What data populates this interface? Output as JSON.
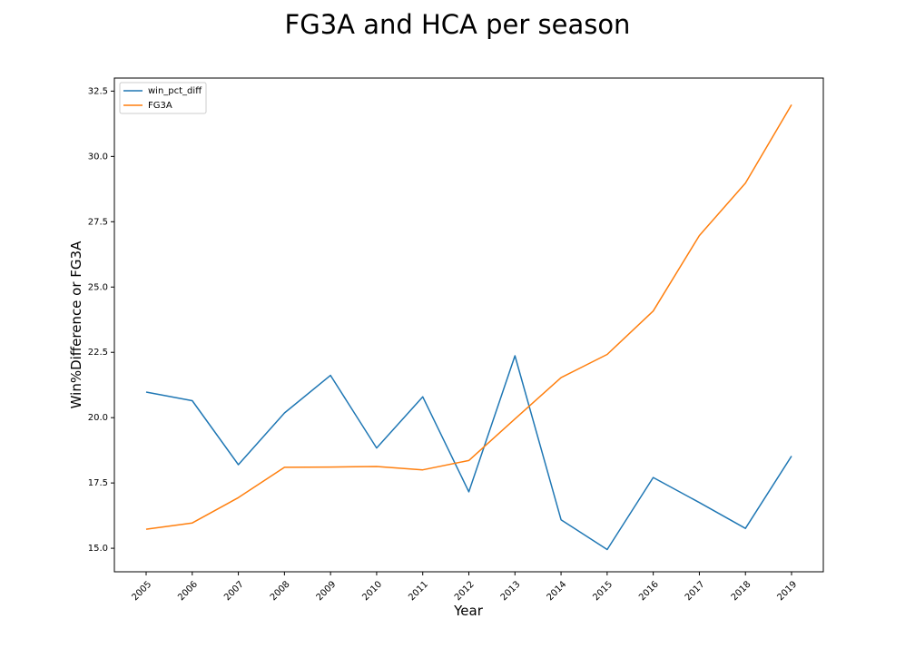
{
  "chart_data": {
    "type": "line",
    "title": "FG3A and HCA per season",
    "xlabel": "Year",
    "ylabel": "Win%Difference or FG3A",
    "x": [
      "2005",
      "2006",
      "2007",
      "2008",
      "2009",
      "2010",
      "2011",
      "2012",
      "2013",
      "2014",
      "2015",
      "2016",
      "2017",
      "2018",
      "2019"
    ],
    "series": [
      {
        "name": "win_pct_diff",
        "color": "#1f77b4",
        "values": [
          20.98,
          20.65,
          18.2,
          20.18,
          21.62,
          18.84,
          20.8,
          17.16,
          22.37,
          16.09,
          14.95,
          17.71,
          16.75,
          15.76,
          18.53
        ]
      },
      {
        "name": "FG3A",
        "color": "#ff7f0e",
        "values": [
          15.73,
          15.97,
          16.94,
          18.1,
          18.11,
          18.13,
          18.0,
          18.36,
          19.95,
          21.53,
          22.42,
          24.08,
          26.97,
          28.98,
          31.98
        ]
      }
    ],
    "yticks": [
      "15.0",
      "17.5",
      "20.0",
      "22.5",
      "25.0",
      "27.5",
      "30.0",
      "32.5"
    ],
    "ylim": [
      14.1,
      33.0
    ],
    "grid": false,
    "legend_position": "upper-left"
  }
}
